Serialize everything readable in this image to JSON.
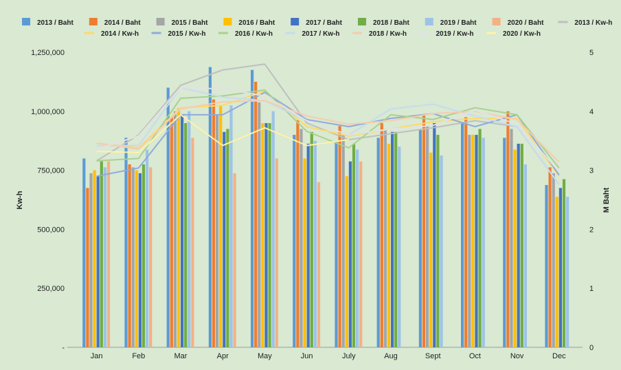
{
  "chart_data": {
    "type": "bar",
    "categories": [
      "Jan",
      "Feb",
      "Mar",
      "Apr",
      "May",
      "Jun",
      "July",
      "Aug",
      "Sept",
      "Oct",
      "Nov",
      "Dec"
    ],
    "ylabel_left": "Kw-h",
    "ylabel_right": "M Baht",
    "y_left_ticks": [
      "-",
      "250,000",
      "500,000",
      "750,000",
      "1,000,000",
      "1,250,000"
    ],
    "y_right_ticks": [
      "0",
      "1",
      "2",
      "3",
      "4",
      "5"
    ],
    "ylim_left": [
      0,
      1250000
    ],
    "ylim_right": [
      0,
      5
    ],
    "legend_position": "top",
    "grid": false,
    "bar_series": [
      {
        "name": "2013 / Baht",
        "color": "#5b9bd5",
        "values": [
          3.2,
          3.55,
          4.4,
          4.75,
          4.7,
          3.6,
          3.5,
          3.55,
          3.7,
          3.8,
          3.55,
          2.75
        ]
      },
      {
        "name": "2014 / Baht",
        "color": "#ed7d31",
        "values": [
          2.7,
          3.1,
          3.9,
          4.2,
          4.5,
          3.85,
          3.75,
          3.8,
          3.95,
          3.9,
          4.0,
          3.05
        ]
      },
      {
        "name": "2015 / Baht",
        "color": "#a5a5a5",
        "values": [
          2.95,
          3.05,
          4.0,
          3.95,
          4.15,
          3.7,
          3.6,
          3.7,
          3.75,
          3.6,
          3.7,
          2.95
        ]
      },
      {
        "name": "2016 / Baht",
        "color": "#ffc000",
        "values": [
          3.0,
          3.0,
          4.05,
          4.1,
          3.8,
          3.2,
          2.9,
          3.45,
          3.3,
          3.6,
          3.35,
          2.55
        ]
      },
      {
        "name": "2017 / Baht",
        "color": "#4472c4",
        "values": [
          2.9,
          2.95,
          3.95,
          3.65,
          3.8,
          3.45,
          3.15,
          3.65,
          3.8,
          3.6,
          3.45,
          2.7
        ]
      },
      {
        "name": "2018 / Baht",
        "color": "#70ad47",
        "values": [
          3.15,
          3.1,
          3.8,
          3.7,
          3.8,
          3.65,
          3.45,
          3.65,
          3.6,
          3.7,
          3.45,
          2.85
        ]
      },
      {
        "name": "2019 / Baht",
        "color": "#9dc3e6",
        "values": [
          3.05,
          3.35,
          4.0,
          4.1,
          4.0,
          3.5,
          3.35,
          3.4,
          3.25,
          3.55,
          3.1,
          2.55
        ]
      },
      {
        "name": "2020 / Baht",
        "color": "#f4b183",
        "values": [
          3.15,
          3.05,
          3.55,
          2.95,
          3.2,
          2.8,
          3.15,
          null,
          null,
          null,
          null,
          null
        ]
      }
    ],
    "line_series": [
      {
        "name": "2013 / Kw-h",
        "color": "#bfbfbf",
        "values": [
          790000,
          900000,
          1110000,
          1175000,
          1200000,
          950000,
          880000,
          905000,
          930000,
          960000,
          935000,
          690000
        ]
      },
      {
        "name": "2014 / Kw-h",
        "color": "#ffd966",
        "values": [
          865000,
          845000,
          1015000,
          1025000,
          1085000,
          935000,
          895000,
          925000,
          955000,
          970000,
          970000,
          725000
        ]
      },
      {
        "name": "2015 / Kw-h",
        "color": "#8faadc",
        "values": [
          725000,
          760000,
          985000,
          985000,
          1080000,
          965000,
          935000,
          970000,
          990000,
          935000,
          985000,
          730000
        ]
      },
      {
        "name": "2016 / Kw-h",
        "color": "#a9d18e",
        "values": [
          790000,
          800000,
          1055000,
          1065000,
          1090000,
          915000,
          845000,
          985000,
          965000,
          1015000,
          985000,
          760000
        ]
      },
      {
        "name": "2017 / Kw-h",
        "color": "#c5dcef",
        "values": [
          855000,
          855000,
          1100000,
          1060000,
          1045000,
          960000,
          900000,
          1010000,
          1030000,
          980000,
          935000,
          690000
        ]
      },
      {
        "name": "2018 / Kw-h",
        "color": "#f8cbad",
        "values": [
          865000,
          840000,
          1010000,
          1040000,
          1045000,
          980000,
          945000,
          960000,
          990000,
          1000000,
          965000,
          785000
        ]
      },
      {
        "name": "2019 / Kw-h",
        "color": "#e2e2e2",
        "values": [
          840000,
          895000,
          1100000,
          1095000,
          1065000,
          960000,
          900000,
          925000,
          940000,
          1005000,
          945000,
          745000
        ]
      },
      {
        "name": "2020 / Kw-h",
        "color": "#fff2a8",
        "values": [
          830000,
          825000,
          985000,
          855000,
          930000,
          855000,
          880000,
          null,
          null,
          null,
          null,
          null
        ]
      }
    ]
  }
}
